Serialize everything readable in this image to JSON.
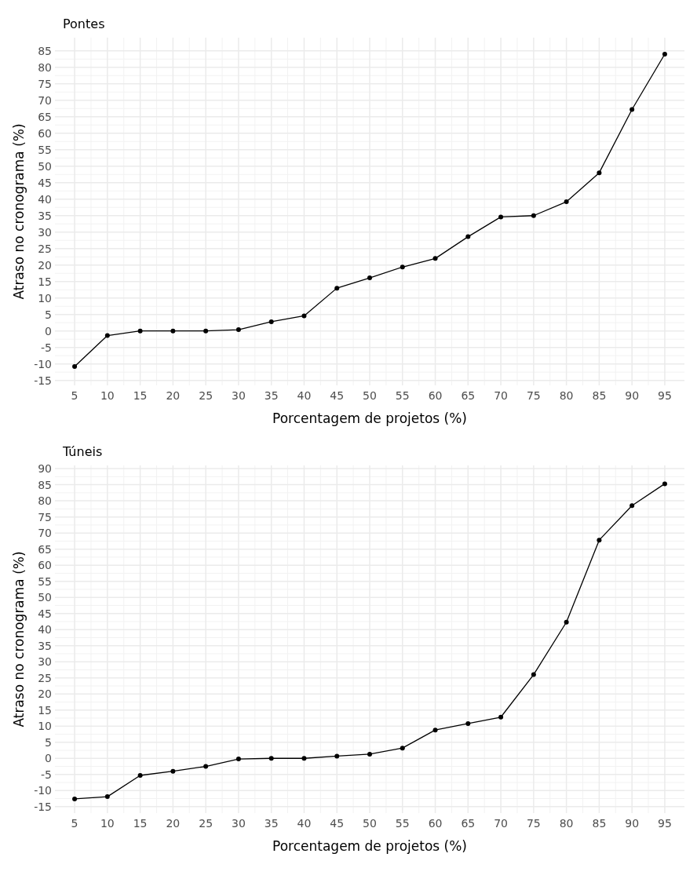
{
  "chart_data": [
    {
      "type": "line",
      "title": "Pontes",
      "xlabel": "Porcentagem de projetos (%)",
      "ylabel": "Atraso no cronograma (%)",
      "categories": [
        "5",
        "10",
        "15",
        "20",
        "25",
        "30",
        "35",
        "40",
        "45",
        "50",
        "55",
        "60",
        "65",
        "70",
        "75",
        "80",
        "85",
        "90",
        "95"
      ],
      "series": [
        {
          "color": "#000000",
          "values": [
            -10.8,
            -1.4,
            0,
            0,
            0,
            0.4,
            2.8,
            4.6,
            13,
            16.1,
            19.4,
            22,
            28.6,
            34.6,
            35,
            39.2,
            48,
            67.2,
            84
          ]
        }
      ],
      "ylim": [
        -16.5,
        89
      ],
      "yticks": [
        -15,
        -10,
        -5,
        0,
        5,
        10,
        15,
        20,
        25,
        30,
        35,
        40,
        45,
        50,
        55,
        60,
        65,
        70,
        75,
        80,
        85
      ],
      "grid": true,
      "marker": "circle",
      "line_style": "solid"
    },
    {
      "type": "line",
      "title": "Túneis",
      "xlabel": "Porcentagem de projetos (%)",
      "ylabel": "Atraso no cronograma (%)",
      "categories": [
        "5",
        "10",
        "15",
        "20",
        "25",
        "30",
        "35",
        "40",
        "45",
        "50",
        "55",
        "60",
        "65",
        "70",
        "75",
        "80",
        "85",
        "90",
        "95"
      ],
      "series": [
        {
          "color": "#000000",
          "values": [
            -12.6,
            -11.9,
            -5.3,
            -4,
            -2.5,
            -0.2,
            0,
            0,
            0.7,
            1.3,
            3.2,
            8.8,
            10.8,
            12.8,
            26,
            42.3,
            67.8,
            78.5,
            85.3
          ]
        }
      ],
      "ylim": [
        -17,
        91
      ],
      "yticks": [
        -15,
        -10,
        -5,
        0,
        5,
        10,
        15,
        20,
        25,
        30,
        35,
        40,
        45,
        50,
        55,
        60,
        65,
        70,
        75,
        80,
        85,
        90
      ],
      "grid": true,
      "marker": "circle",
      "line_style": "solid"
    }
  ]
}
